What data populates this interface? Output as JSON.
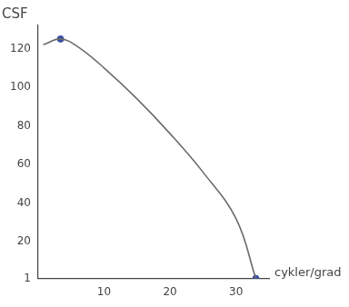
{
  "chart_data": {
    "type": "line",
    "y_label": "CSF",
    "x_label": "cykler/grad",
    "series": [
      {
        "x": [
          0.8,
          3.4,
          6,
          10,
          15,
          20,
          25,
          30,
          33
        ],
        "values": [
          122,
          125,
          121,
          110,
          94,
          76,
          56,
          32,
          1
        ],
        "color": "#6b6b6b",
        "marker": "none",
        "line_style": "solid"
      },
      {
        "x": [
          3.4,
          33
        ],
        "values": [
          125,
          1
        ],
        "color": "#3b4fa8",
        "marker": "circle",
        "type": "scatter"
      }
    ],
    "xlim": [
      0,
      35
    ],
    "xticks": [
      10,
      20,
      30
    ],
    "ylim": [
      1,
      132
    ],
    "yticks": [
      1,
      20,
      40,
      60,
      80,
      100,
      120
    ],
    "grid": false
  }
}
